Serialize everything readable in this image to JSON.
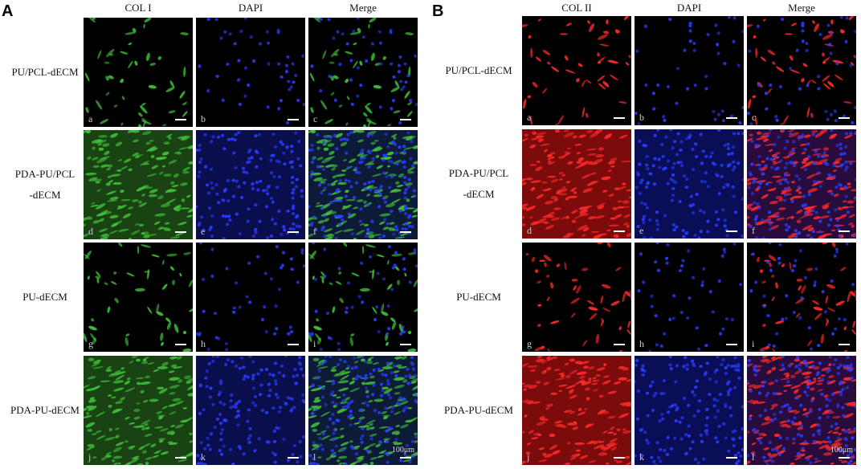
{
  "panels": [
    {
      "label": "A",
      "columns": [
        "COL I",
        "DAPI",
        "Merge"
      ],
      "rows": [
        {
          "label": [
            "PU/PCL-dECM"
          ],
          "tiles": [
            "a",
            "b",
            "c"
          ]
        },
        {
          "label": [
            "PDA-PU/PCL",
            "-dECM"
          ],
          "tiles": [
            "d",
            "e",
            "f"
          ]
        },
        {
          "label": [
            "PU-dECM"
          ],
          "tiles": [
            "g",
            "h",
            "i"
          ]
        },
        {
          "label": [
            "PDA-PU-dECM"
          ],
          "tiles": [
            "j",
            "k",
            "l"
          ]
        }
      ],
      "scale": "100μm"
    },
    {
      "label": "B",
      "columns": [
        "COL II",
        "DAPI",
        "Merge"
      ],
      "rows": [
        {
          "label": [
            "PU/PCL-dECM"
          ],
          "tiles": [
            "a",
            "b",
            "c"
          ]
        },
        {
          "label": [
            "PDA-PU/PCL",
            "-dECM"
          ],
          "tiles": [
            "d",
            "e",
            "f"
          ]
        },
        {
          "label": [
            "PU-dECM"
          ],
          "tiles": [
            "g",
            "h",
            "i"
          ]
        },
        {
          "label": [
            "PDA-PU-dECM"
          ],
          "tiles": [
            "j",
            "k",
            "l"
          ]
        }
      ],
      "scale": "100μm"
    }
  ]
}
